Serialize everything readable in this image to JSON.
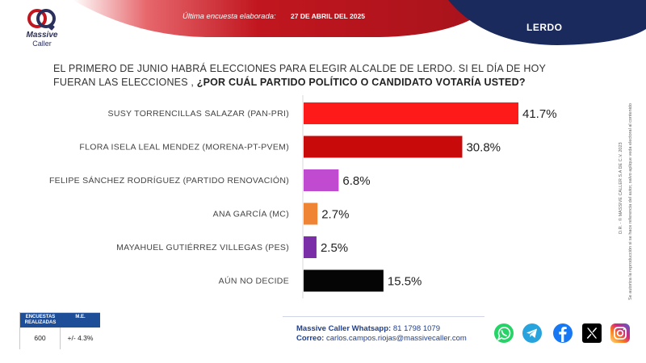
{
  "header": {
    "brand_line1": "Massive",
    "brand_line2": "Caller",
    "latest_label": "Última encuesta elaborada:",
    "latest_date": "27 DE ABRIL DEL 2025",
    "region": "LERDO",
    "colors": {
      "red": "#c1161f",
      "navy": "#1b2a5c"
    }
  },
  "question": {
    "text_plain": "EL PRIMERO DE JUNIO HABRÁ ELECCIONES PARA ELEGIR ALCALDE DE LERDO.  SI EL DÍA DE HOY FUERAN LAS ELECCIONES , ",
    "text_bold": "¿POR CUÁL PARTIDO POLÍTICO O CANDIDATO VOTARÍA USTED?"
  },
  "chart_data": {
    "type": "bar",
    "orientation": "horizontal",
    "categories": [
      "SUSY TORRENCILLAS SALAZAR (PAN-PRI)",
      "FLORA ISELA LEAL MENDEZ (MORENA-PT-PVEM)",
      "FELIPE SÁNCHEZ RODRÍGUEZ (PARTIDO RENOVACIÓN)",
      "ANA GARCÍA (MC)",
      "MAYAHUEL GUTIÉRREZ VILLEGAS (PES)",
      "AÚN NO DECIDE"
    ],
    "values": [
      41.7,
      30.8,
      6.8,
      2.7,
      2.5,
      15.5
    ],
    "labels": [
      "41.7%",
      "30.8%",
      "6.8%",
      "2.7%",
      "2.5%",
      "15.5%"
    ],
    "colors": [
      "#ff1a1a",
      "#c80a0a",
      "#c04ad0",
      "#ef8434",
      "#7a2fa8",
      "#050505"
    ],
    "xlim": [
      0,
      50
    ],
    "grid": false,
    "legend": "none"
  },
  "side_note": {
    "line1": "D.R. - © MASSIVE CALLER S.A DE C.V. 2023",
    "line2": "Se autoriza la reproducción si se hace referencia del autor, salvo aplique veda electoral al contenido"
  },
  "sample_table": {
    "h1": "ENCUESTAS REALIZADAS",
    "h2": "M.E.",
    "v1": "600",
    "v2": "+/- 4.3%"
  },
  "contact": {
    "whatsapp_label": "Massive Caller Whatsapp:",
    "whatsapp_number": "81 1798 1079",
    "email_label": "Correo:",
    "email": "carlos.campos.riojas@massivecaller.com"
  },
  "social_icons": [
    "whatsapp-icon",
    "telegram-icon",
    "facebook-icon",
    "x-icon",
    "instagram-icon"
  ]
}
